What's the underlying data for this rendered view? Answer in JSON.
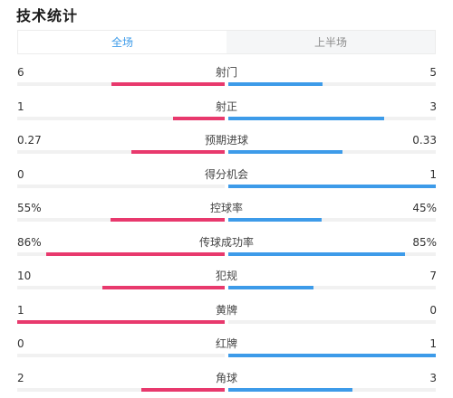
{
  "header": {
    "title": "技术统计"
  },
  "tabs": [
    {
      "label": "全场",
      "active": true
    },
    {
      "label": "上半场",
      "active": false
    }
  ],
  "colors": {
    "home": "#e8396d",
    "away": "#3d9be9",
    "accent": "#3d9be9"
  },
  "stats": [
    {
      "label": "射门",
      "left": "6",
      "right": "5",
      "left_share": 0.545,
      "right_share": 0.455
    },
    {
      "label": "射正",
      "left": "1",
      "right": "3",
      "left_share": 0.25,
      "right_share": 0.75
    },
    {
      "label": "预期进球",
      "left": "0.27",
      "right": "0.33",
      "left_share": 0.45,
      "right_share": 0.55
    },
    {
      "label": "得分机会",
      "left": "0",
      "right": "1",
      "left_share": 0.0,
      "right_share": 1.0
    },
    {
      "label": "控球率",
      "left": "55%",
      "right": "45%",
      "left_share": 0.55,
      "right_share": 0.45
    },
    {
      "label": "传球成功率",
      "left": "86%",
      "right": "85%",
      "left_share": 0.86,
      "right_share": 0.85
    },
    {
      "label": "犯规",
      "left": "10",
      "right": "7",
      "left_share": 0.588,
      "right_share": 0.412
    },
    {
      "label": "黄牌",
      "left": "1",
      "right": "0",
      "left_share": 1.0,
      "right_share": 0.0
    },
    {
      "label": "红牌",
      "left": "0",
      "right": "1",
      "left_share": 0.0,
      "right_share": 1.0
    },
    {
      "label": "角球",
      "left": "2",
      "right": "3",
      "left_share": 0.4,
      "right_share": 0.6
    }
  ]
}
